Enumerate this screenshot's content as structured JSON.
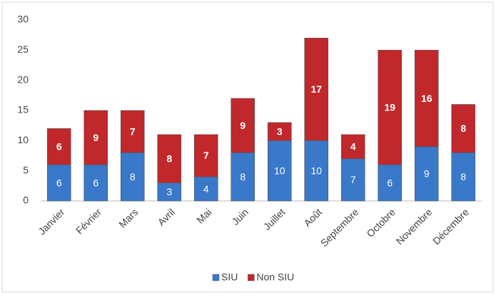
{
  "chart_data": {
    "type": "stacked_bar",
    "categories": [
      "Janvier",
      "Février",
      "Mars",
      "Avril",
      "Mai",
      "Juin",
      "Juillet",
      "Août",
      "Septembre",
      "Octobre",
      "Novembre",
      "Décembre"
    ],
    "series": [
      {
        "name": "SIU",
        "color": "#3a78c9",
        "values": [
          6,
          6,
          8,
          3,
          4,
          8,
          10,
          10,
          7,
          6,
          9,
          8
        ]
      },
      {
        "name": "Non SIU",
        "color": "#c0282b",
        "values": [
          6,
          9,
          7,
          8,
          7,
          9,
          3,
          17,
          4,
          19,
          16,
          8
        ]
      }
    ],
    "ylim": [
      0,
      30
    ],
    "yticks": [
      0,
      5,
      10,
      15,
      20,
      25,
      30
    ],
    "grid": false,
    "legend": "bottom"
  }
}
